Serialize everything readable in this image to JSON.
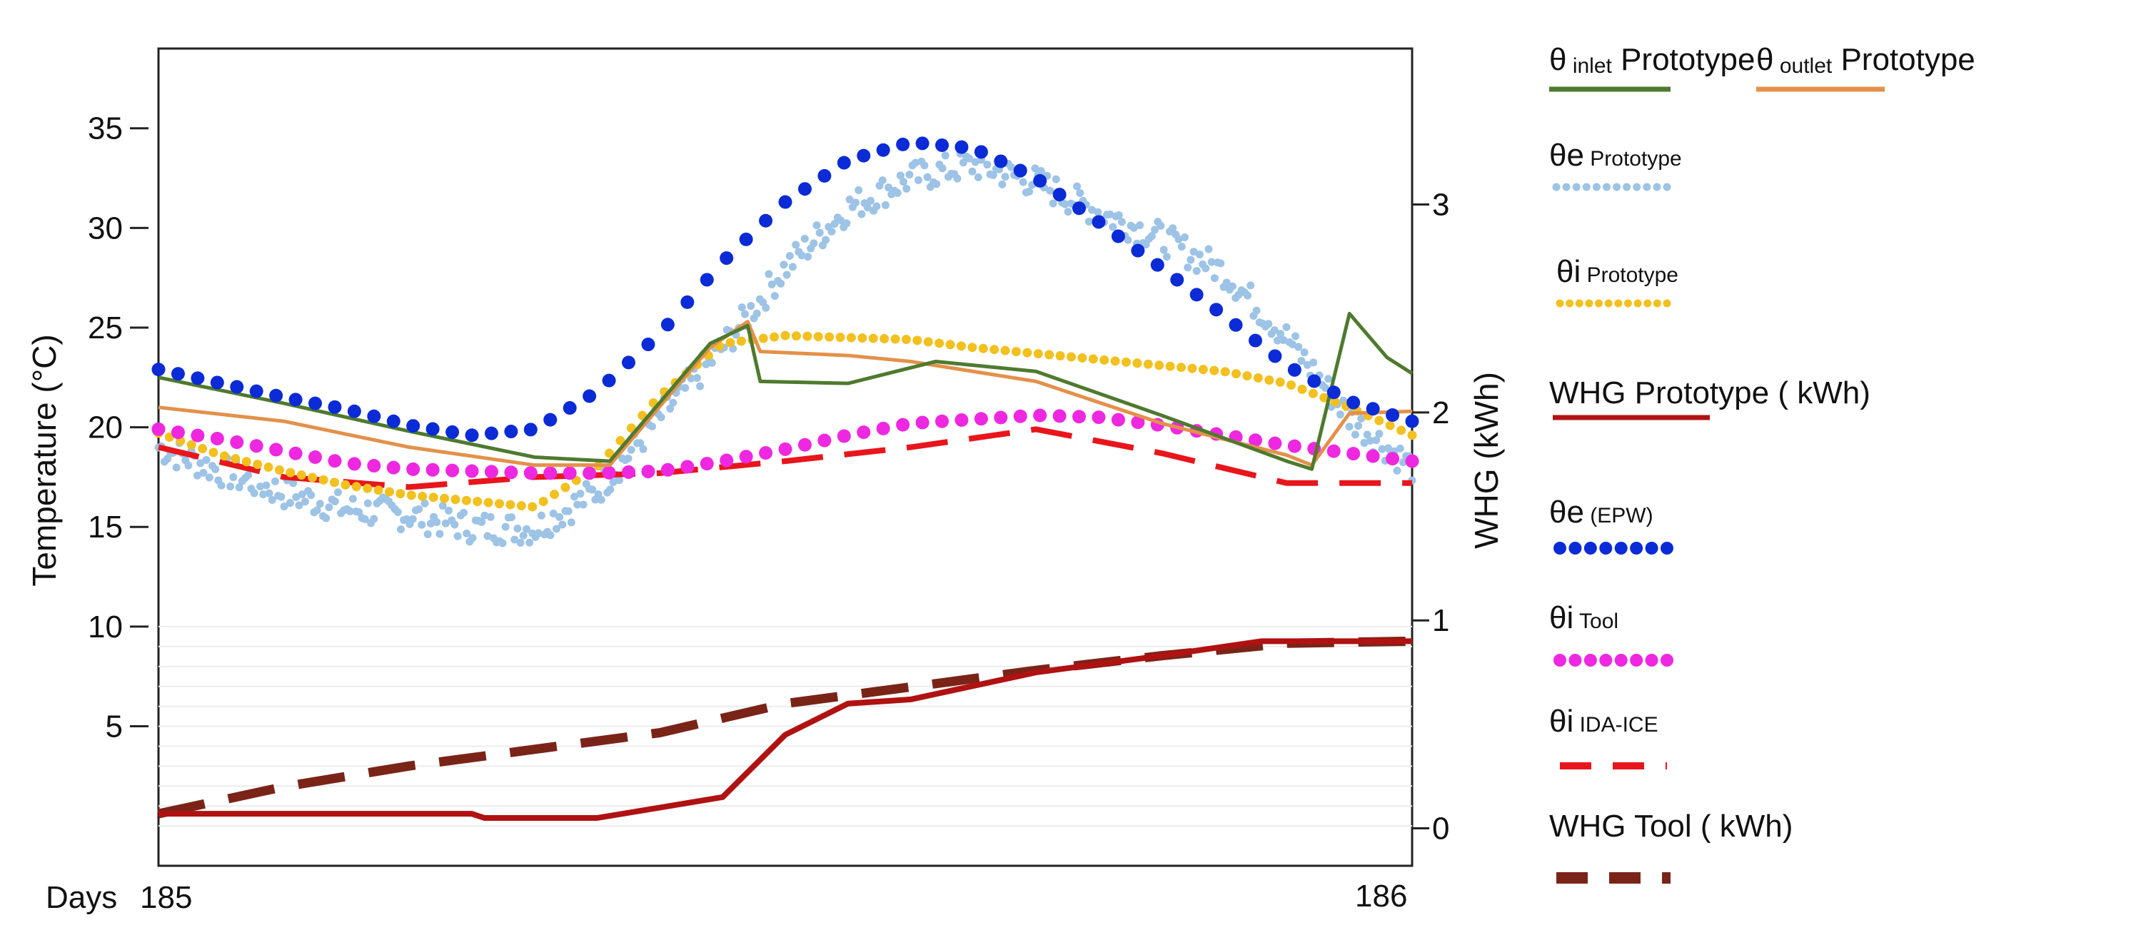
{
  "chart_data": {
    "type": "line",
    "title": "",
    "xlabel": "Days",
    "ylabel": "Temperature (°C)",
    "y2label": "WHG (kWh)",
    "x_ticks": [
      "185",
      "186"
    ],
    "xlim": [
      185,
      186
    ],
    "ylim": [
      -2,
      39
    ],
    "y2lim": [
      -0.18,
      3.75
    ],
    "y_ticks": [
      5,
      10,
      15,
      20,
      25,
      30,
      35
    ],
    "y_tick_labels": [
      "5",
      "10",
      "15",
      "20",
      "25",
      "30",
      "35"
    ],
    "y2_ticks": [
      0,
      1,
      2,
      3
    ],
    "y2_tick_labels": [
      "0",
      "1",
      "2",
      "3"
    ],
    "legend_position": "right",
    "series": [
      {
        "id": "inlet",
        "symbol": "θ",
        "sub": "inlet",
        "name": "Prototype",
        "color": "#4e7a2e",
        "style": "solid",
        "axis": "left",
        "x": [
          185.0,
          185.1,
          185.2,
          185.3,
          185.36,
          185.44,
          185.47,
          185.48,
          185.55,
          185.62,
          185.7,
          185.8,
          185.9,
          185.92,
          185.95,
          185.98,
          186.0
        ],
        "y": [
          22.5,
          21.2,
          19.8,
          18.5,
          18.3,
          24.2,
          25.1,
          22.3,
          22.2,
          23.3,
          22.8,
          20.6,
          18.3,
          17.9,
          25.7,
          23.5,
          22.7
        ]
      },
      {
        "id": "outlet",
        "symbol": "θ",
        "sub": "outlet",
        "name": "Prototype",
        "color": "#e3914a",
        "style": "solid",
        "axis": "left",
        "x": [
          185.0,
          185.1,
          185.2,
          185.3,
          185.36,
          185.44,
          185.47,
          185.48,
          185.55,
          185.6,
          185.7,
          185.8,
          185.9,
          185.92,
          185.95,
          186.0
        ],
        "y": [
          21.0,
          20.3,
          19.0,
          18.1,
          18.1,
          24.0,
          25.3,
          23.8,
          23.6,
          23.3,
          22.3,
          20.2,
          18.6,
          18.1,
          20.7,
          20.8
        ]
      },
      {
        "id": "theta_e_proto",
        "symbol": "θe",
        "sub": "",
        "name": "Prototype",
        "color": "#9dc3e6",
        "style": "scatter",
        "axis": "left",
        "x": [
          185.0,
          185.05,
          185.1,
          185.15,
          185.2,
          185.25,
          185.3,
          185.35,
          185.4,
          185.45,
          185.5,
          185.55,
          185.6,
          185.65,
          185.7,
          185.75,
          185.8,
          185.85,
          185.9,
          185.95,
          186.0
        ],
        "y": [
          19.0,
          17.8,
          16.7,
          15.9,
          15.6,
          15.0,
          14.9,
          16.8,
          20.5,
          24.0,
          28.0,
          31.0,
          32.5,
          33.2,
          32.3,
          30.8,
          29.5,
          27.8,
          24.5,
          20.5,
          18.0
        ]
      },
      {
        "id": "theta_i_proto",
        "symbol": "θi",
        "sub": "",
        "name": "Prototype",
        "color": "#f2c01f",
        "style": "dotted",
        "axis": "left",
        "x": [
          185.0,
          185.05,
          185.1,
          185.15,
          185.2,
          185.25,
          185.3,
          185.35,
          185.4,
          185.45,
          185.5,
          185.55,
          185.6,
          185.65,
          185.7,
          185.75,
          185.8,
          185.85,
          185.9,
          185.95,
          186.0
        ],
        "y": [
          19.7,
          18.6,
          17.8,
          17.1,
          16.6,
          16.3,
          16.0,
          18.0,
          21.6,
          24.2,
          24.6,
          24.5,
          24.4,
          24.0,
          23.7,
          23.4,
          23.1,
          22.8,
          22.2,
          21.0,
          19.6
        ]
      },
      {
        "id": "whg_proto",
        "symbol": "",
        "sub": "",
        "name": "WHG Prototype (kWh)",
        "color": "#b01212",
        "style": "solid",
        "axis": "right",
        "x": [
          185.0,
          185.1,
          185.25,
          185.26,
          185.35,
          185.4,
          185.45,
          185.5,
          185.55,
          185.6,
          185.7,
          185.8,
          185.88,
          186.0
        ],
        "y": [
          0.07,
          0.07,
          0.07,
          0.05,
          0.05,
          0.1,
          0.15,
          0.45,
          0.6,
          0.62,
          0.75,
          0.83,
          0.9,
          0.9
        ]
      },
      {
        "id": "theta_e_epw",
        "symbol": "θe",
        "sub": "",
        "name": "(EPW)",
        "color": "#0a2bd6",
        "style": "big-dots",
        "axis": "left",
        "x": [
          185.0,
          185.05,
          185.1,
          185.15,
          185.2,
          185.25,
          185.3,
          185.35,
          185.4,
          185.45,
          185.5,
          185.55,
          185.6,
          185.65,
          185.7,
          185.75,
          185.8,
          185.85,
          185.9,
          185.95,
          186.0
        ],
        "y": [
          22.9,
          22.2,
          21.5,
          20.9,
          20.1,
          19.6,
          19.9,
          21.8,
          24.7,
          28.3,
          31.3,
          33.4,
          34.3,
          34.0,
          32.5,
          30.3,
          28.0,
          25.6,
          23.1,
          21.3,
          20.3
        ]
      },
      {
        "id": "theta_i_tool",
        "symbol": "θi",
        "sub": "",
        "name": "Tool",
        "color": "#ee28e0",
        "style": "big-dots",
        "axis": "left",
        "x": [
          185.0,
          185.05,
          185.1,
          185.15,
          185.2,
          185.25,
          185.3,
          185.35,
          185.4,
          185.45,
          185.5,
          185.55,
          185.6,
          185.65,
          185.7,
          185.75,
          185.8,
          185.85,
          185.9,
          185.95,
          186.0
        ],
        "y": [
          19.9,
          19.4,
          18.8,
          18.2,
          17.9,
          17.8,
          17.7,
          17.7,
          17.8,
          18.3,
          18.9,
          19.6,
          20.2,
          20.4,
          20.6,
          20.5,
          20.1,
          19.6,
          19.1,
          18.7,
          18.3
        ]
      },
      {
        "id": "theta_i_ida",
        "symbol": "θi",
        "sub": "",
        "name": "IDA-ICE",
        "color": "#e8161c",
        "style": "dashed",
        "axis": "left",
        "x": [
          185.0,
          185.1,
          185.2,
          185.3,
          185.4,
          185.5,
          185.6,
          185.7,
          185.8,
          185.9,
          186.0
        ],
        "y": [
          19.0,
          17.5,
          17.0,
          17.5,
          17.7,
          18.3,
          19.0,
          19.9,
          18.7,
          17.2,
          17.2
        ]
      },
      {
        "id": "whg_tool",
        "symbol": "",
        "sub": "",
        "name": "WHG Tool (kWh)",
        "color": "#7a2418",
        "style": "dashed-thick",
        "axis": "right",
        "x": [
          185.0,
          185.1,
          185.2,
          185.3,
          185.4,
          185.5,
          185.6,
          185.7,
          185.8,
          185.9,
          186.0
        ],
        "y": [
          0.07,
          0.2,
          0.3,
          0.38,
          0.46,
          0.6,
          0.68,
          0.76,
          0.83,
          0.89,
          0.9
        ]
      }
    ],
    "legend": [
      {
        "series": "inlet",
        "main": "θ",
        "sub": "inlet",
        "tail": "Prototype",
        "style": "solid",
        "color": "#4e7a2e"
      },
      {
        "series": "outlet",
        "main": "θ",
        "sub": "outlet",
        "tail": "Prototype",
        "style": "solid",
        "color": "#e3914a"
      },
      {
        "series": "theta_e_proto",
        "main": "θe",
        "sub": "",
        "tail": "Prototype",
        "style": "small-dots",
        "color": "#9dc3e6"
      },
      {
        "series": "theta_i_proto",
        "main": "θi",
        "sub": "",
        "tail": "Prototype",
        "style": "small-dots",
        "color": "#f2c01f"
      },
      {
        "series": "whg_proto",
        "main": "WHG",
        "sub": "",
        "tail": "Prototype ( kWh)",
        "style": "solid",
        "color": "#b01212"
      },
      {
        "series": "theta_e_epw",
        "main": "θe",
        "sub": "",
        "tail": "(EPW)",
        "style": "big-dots",
        "color": "#0a2bd6"
      },
      {
        "series": "theta_i_tool",
        "main": "θi",
        "sub": "",
        "tail": "Tool",
        "style": "big-dots",
        "color": "#ee28e0"
      },
      {
        "series": "theta_i_ida",
        "main": "θi",
        "sub": "",
        "tail": "IDA-ICE",
        "style": "dashed",
        "color": "#e8161c"
      },
      {
        "series": "whg_tool",
        "main": "WHG",
        "sub": "",
        "tail": "Tool ( kWh)",
        "style": "dashed-thick",
        "color": "#7a2418"
      }
    ]
  }
}
